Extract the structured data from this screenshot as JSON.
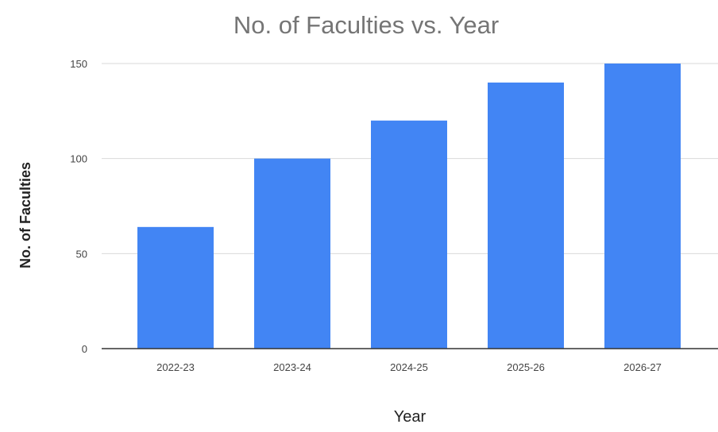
{
  "chart_data": {
    "type": "bar",
    "title": "No. of Faculties vs. Year",
    "xlabel": "Year",
    "ylabel": "No. of Faculties",
    "categories": [
      "2022-23",
      "2023-24",
      "2024-25",
      "2025-26",
      "2026-27"
    ],
    "series": [
      {
        "values": [
          64,
          100,
          120,
          140,
          150
        ]
      }
    ],
    "ylim": [
      0,
      150
    ],
    "yticks": [
      0,
      50,
      100,
      150
    ],
    "grid": true,
    "legend": "none",
    "colors": {
      "bar": "#4285f4",
      "title": "#757575",
      "axis_label": "#222222",
      "tick_label": "#444444",
      "grid": "#d9d9d9",
      "baseline": "#333333"
    }
  }
}
